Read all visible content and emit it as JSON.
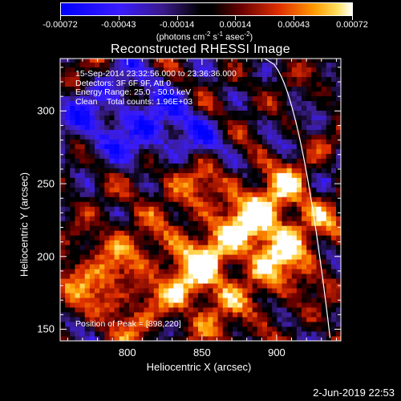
{
  "colorbar": {
    "tick_labels": [
      "-0.00072",
      "-0.00043",
      "-0.00014",
      "0.00014",
      "0.00043",
      "0.00072"
    ],
    "units_label": "(photons cm",
    "units_sup1": "-2",
    "units_mid": " s",
    "units_sup2": "-1",
    "units_end": " asec",
    "units_sup3": "-2",
    "units_close": ")"
  },
  "header": {
    "title": "Reconstructed RHESSI Image",
    "info": [
      "15-Sep-2014 23:32:56.000 to 23:36:36.000",
      "Detectors: 3F 6F 9F, Att 0",
      "Energy Range: 25.0 - 50.0 keV",
      "Clean    Total counts: 1.96E+03"
    ],
    "peak_note": "Position of Peak = [898,220]"
  },
  "footer": {
    "timestamp": "2-Jun-2019 22:53"
  },
  "chart_data": {
    "type": "heatmap",
    "title": "Reconstructed RHESSI Image",
    "xlabel": "Heliocentric X (arcsec)",
    "ylabel": "Heliocentric Y (arcsec)",
    "xlim": [
      755,
      943
    ],
    "ylim": [
      142,
      336
    ],
    "xticks": [
      800,
      850,
      900
    ],
    "yticks": [
      150,
      200,
      250,
      300
    ],
    "color_range": [
      -0.00072,
      0.00072
    ],
    "colormap": "rhessi_blue_black_red_yellow_white",
    "peak_position": [
      898,
      220
    ],
    "colors": {
      "negative_max": "#0000ff",
      "zero": "#000000",
      "mid": "#d02000",
      "high": "#ffa000",
      "positive_max": "#ffffff",
      "limb": "#ffffff"
    }
  }
}
